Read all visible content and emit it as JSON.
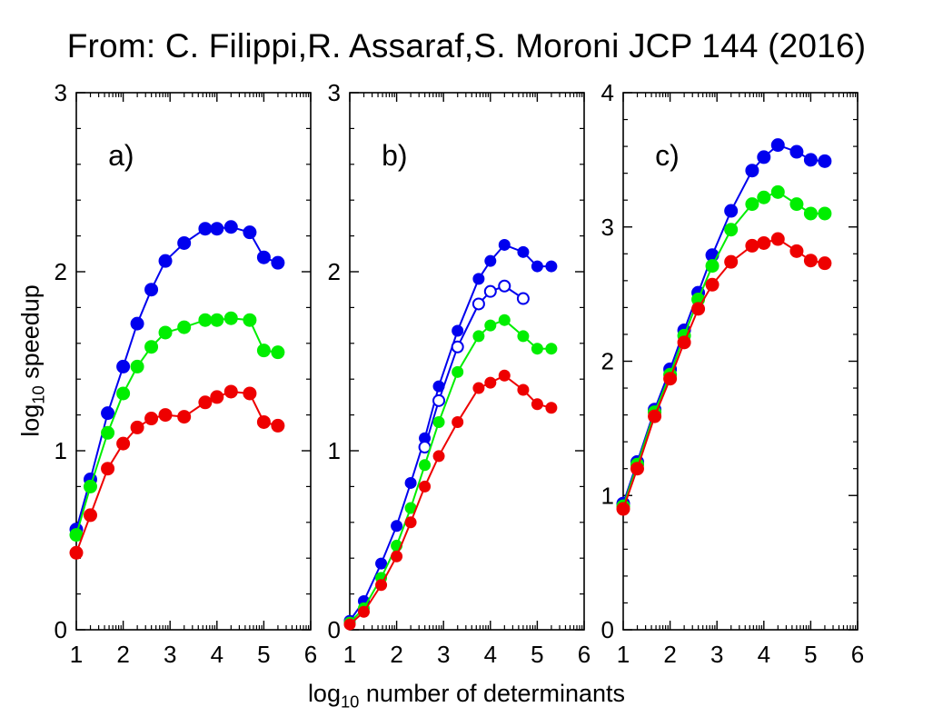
{
  "title": "From: C. Filippi,R. Assaraf,S. Moroni JCP 144 (2016)",
  "ylabel": {
    "prefix": "log",
    "sub": "10",
    "suffix": " speedup"
  },
  "xlabel": {
    "prefix": "log",
    "sub": "10",
    "suffix": " number of determinants"
  },
  "colors": {
    "blue": "#0000ee",
    "green": "#00ee00",
    "red": "#ee0000"
  },
  "chart_data": [
    {
      "type": "line",
      "panel_label": "a)",
      "xlim": [
        1,
        6
      ],
      "ylim": [
        0,
        3
      ],
      "xticks": [
        "1",
        "2",
        "3",
        "4",
        "5",
        "6"
      ],
      "yticks": [
        "0",
        "1",
        "2",
        "3"
      ],
      "series": [
        {
          "color": "#0000ee",
          "marker": "filled",
          "points": [
            [
              1.0,
              0.56
            ],
            [
              1.3,
              0.84
            ],
            [
              1.67,
              1.21
            ],
            [
              2.0,
              1.47
            ],
            [
              2.3,
              1.71
            ],
            [
              2.6,
              1.9
            ],
            [
              2.9,
              2.06
            ],
            [
              3.3,
              2.16
            ],
            [
              3.75,
              2.24
            ],
            [
              4.0,
              2.24
            ],
            [
              4.3,
              2.25
            ],
            [
              4.7,
              2.22
            ],
            [
              5.0,
              2.08
            ],
            [
              5.3,
              2.05
            ]
          ]
        },
        {
          "color": "#00ee00",
          "marker": "filled",
          "points": [
            [
              1.0,
              0.53
            ],
            [
              1.3,
              0.8
            ],
            [
              1.67,
              1.1
            ],
            [
              2.0,
              1.32
            ],
            [
              2.3,
              1.47
            ],
            [
              2.6,
              1.58
            ],
            [
              2.9,
              1.66
            ],
            [
              3.3,
              1.69
            ],
            [
              3.75,
              1.73
            ],
            [
              4.0,
              1.73
            ],
            [
              4.3,
              1.74
            ],
            [
              4.7,
              1.73
            ],
            [
              5.0,
              1.56
            ],
            [
              5.3,
              1.55
            ]
          ]
        },
        {
          "color": "#ee0000",
          "marker": "filled",
          "points": [
            [
              1.0,
              0.43
            ],
            [
              1.3,
              0.64
            ],
            [
              1.67,
              0.9
            ],
            [
              2.0,
              1.04
            ],
            [
              2.3,
              1.13
            ],
            [
              2.6,
              1.18
            ],
            [
              2.9,
              1.2
            ],
            [
              3.3,
              1.19
            ],
            [
              3.75,
              1.27
            ],
            [
              4.0,
              1.3
            ],
            [
              4.3,
              1.33
            ],
            [
              4.7,
              1.32
            ],
            [
              5.0,
              1.16
            ],
            [
              5.3,
              1.14
            ]
          ]
        }
      ]
    },
    {
      "type": "line",
      "panel_label": "b)",
      "xlim": [
        1,
        6
      ],
      "ylim": [
        0,
        3
      ],
      "xticks": [
        "1",
        "2",
        "3",
        "4",
        "5",
        "6"
      ],
      "yticks": [
        "0",
        "1",
        "2",
        "3"
      ],
      "series": [
        {
          "color": "#0000ee",
          "marker": "filled",
          "points": [
            [
              1.0,
              0.05
            ],
            [
              1.3,
              0.16
            ],
            [
              1.67,
              0.37
            ],
            [
              2.0,
              0.58
            ],
            [
              2.3,
              0.82
            ],
            [
              2.6,
              1.07
            ],
            [
              2.9,
              1.36
            ],
            [
              3.3,
              1.67
            ],
            [
              3.75,
              1.96
            ],
            [
              4.0,
              2.06
            ],
            [
              4.3,
              2.15
            ],
            [
              4.7,
              2.11
            ],
            [
              5.0,
              2.03
            ],
            [
              5.3,
              2.03
            ]
          ]
        },
        {
          "color": "#0000ee",
          "marker": "open",
          "points": [
            [
              2.6,
              1.02
            ],
            [
              2.9,
              1.28
            ],
            [
              3.3,
              1.58
            ],
            [
              3.75,
              1.82
            ],
            [
              4.0,
              1.89
            ],
            [
              4.3,
              1.92
            ],
            [
              4.7,
              1.85
            ]
          ]
        },
        {
          "color": "#00ee00",
          "marker": "filled",
          "points": [
            [
              1.0,
              0.04
            ],
            [
              1.3,
              0.12
            ],
            [
              1.67,
              0.29
            ],
            [
              2.0,
              0.47
            ],
            [
              2.3,
              0.68
            ],
            [
              2.6,
              0.92
            ],
            [
              2.9,
              1.16
            ],
            [
              3.3,
              1.44
            ],
            [
              3.75,
              1.64
            ],
            [
              4.0,
              1.7
            ],
            [
              4.3,
              1.73
            ],
            [
              4.7,
              1.64
            ],
            [
              5.0,
              1.57
            ],
            [
              5.3,
              1.57
            ]
          ]
        },
        {
          "color": "#ee0000",
          "marker": "filled",
          "points": [
            [
              1.0,
              0.03
            ],
            [
              1.3,
              0.1
            ],
            [
              1.67,
              0.25
            ],
            [
              2.0,
              0.41
            ],
            [
              2.3,
              0.6
            ],
            [
              2.6,
              0.8
            ],
            [
              2.9,
              0.97
            ],
            [
              3.3,
              1.16
            ],
            [
              3.75,
              1.35
            ],
            [
              4.0,
              1.38
            ],
            [
              4.3,
              1.42
            ],
            [
              4.7,
              1.34
            ],
            [
              5.0,
              1.26
            ],
            [
              5.3,
              1.24
            ]
          ]
        }
      ]
    },
    {
      "type": "line",
      "panel_label": "c)",
      "xlim": [
        1,
        6
      ],
      "ylim": [
        0,
        4
      ],
      "xticks": [
        "1",
        "2",
        "3",
        "4",
        "5",
        "6"
      ],
      "yticks": [
        "0",
        "1",
        "2",
        "3",
        "4"
      ],
      "series": [
        {
          "color": "#0000ee",
          "marker": "filled",
          "points": [
            [
              1.0,
              0.94
            ],
            [
              1.3,
              1.25
            ],
            [
              1.67,
              1.64
            ],
            [
              2.0,
              1.94
            ],
            [
              2.3,
              2.23
            ],
            [
              2.6,
              2.51
            ],
            [
              2.9,
              2.79
            ],
            [
              3.3,
              3.12
            ],
            [
              3.75,
              3.42
            ],
            [
              4.0,
              3.52
            ],
            [
              4.3,
              3.61
            ],
            [
              4.7,
              3.56
            ],
            [
              5.0,
              3.5
            ],
            [
              5.3,
              3.49
            ]
          ]
        },
        {
          "color": "#00ee00",
          "marker": "filled",
          "points": [
            [
              1.0,
              0.92
            ],
            [
              1.3,
              1.23
            ],
            [
              1.67,
              1.62
            ],
            [
              2.0,
              1.9
            ],
            [
              2.3,
              2.19
            ],
            [
              2.6,
              2.46
            ],
            [
              2.9,
              2.71
            ],
            [
              3.3,
              2.98
            ],
            [
              3.75,
              3.17
            ],
            [
              4.0,
              3.22
            ],
            [
              4.3,
              3.26
            ],
            [
              4.7,
              3.17
            ],
            [
              5.0,
              3.1
            ],
            [
              5.3,
              3.1
            ]
          ]
        },
        {
          "color": "#ee0000",
          "marker": "filled",
          "points": [
            [
              1.0,
              0.9
            ],
            [
              1.3,
              1.2
            ],
            [
              1.67,
              1.59
            ],
            [
              2.0,
              1.87
            ],
            [
              2.3,
              2.14
            ],
            [
              2.6,
              2.39
            ],
            [
              2.9,
              2.57
            ],
            [
              3.3,
              2.74
            ],
            [
              3.75,
              2.86
            ],
            [
              4.0,
              2.88
            ],
            [
              4.3,
              2.91
            ],
            [
              4.7,
              2.82
            ],
            [
              5.0,
              2.75
            ],
            [
              5.3,
              2.73
            ]
          ]
        }
      ]
    }
  ]
}
